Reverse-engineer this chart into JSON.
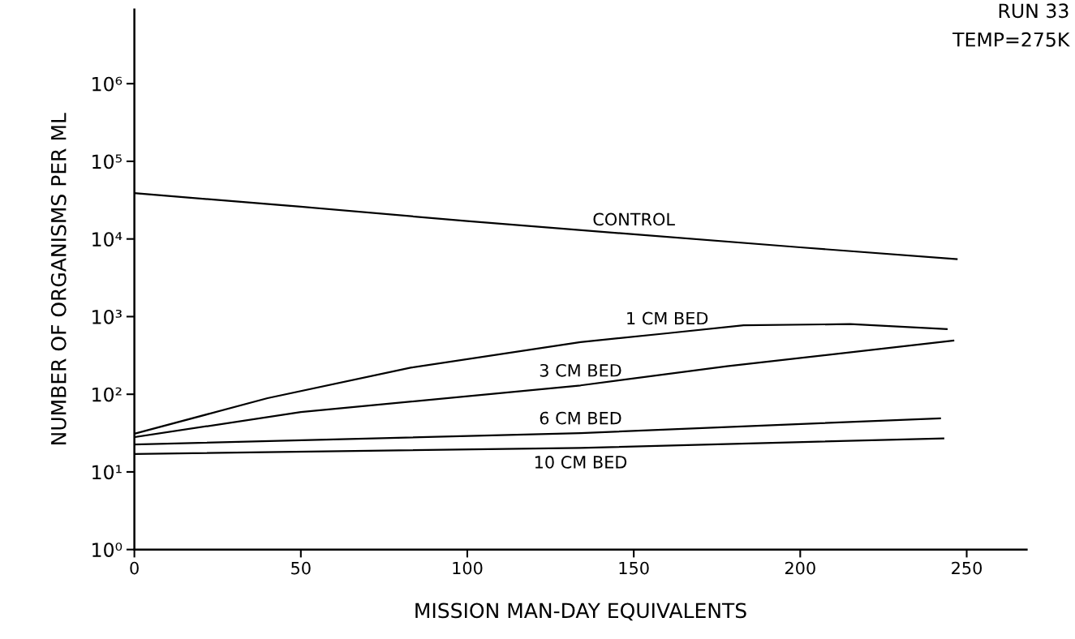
{
  "chart_data": {
    "type": "line",
    "xlabel": "MISSION MAN-DAY EQUIVALENTS",
    "ylabel": "NUMBER OF ORGANISMS PER ML",
    "annotations": [
      "RUN 33",
      "TEMP=275K"
    ],
    "log": "y",
    "xlim": [
      0,
      268
    ],
    "xticks": [
      0,
      50,
      100,
      150,
      200,
      250
    ],
    "ylim": [
      1,
      9000000
    ],
    "yticks": [
      {
        "value": 1,
        "label": "10⁰"
      },
      {
        "value": 10,
        "label": "10¹"
      },
      {
        "value": 100,
        "label": "10²"
      },
      {
        "value": 1000,
        "label": "10³"
      },
      {
        "value": 10000,
        "label": "10⁴"
      },
      {
        "value": 100000,
        "label": "10⁵"
      },
      {
        "value": 1000000,
        "label": "10⁶"
      }
    ],
    "grid": false,
    "legend": false,
    "marker": "none",
    "line_style": "solid",
    "series": [
      {
        "name": "CONTROL",
        "color": "#000000",
        "x": [
          0,
          50,
          100,
          150,
          200,
          247
        ],
        "values": [
          39000,
          26000,
          17000,
          11500,
          7800,
          5500
        ]
      },
      {
        "name": "1 CM BED",
        "color": "#000000",
        "x": [
          0,
          40,
          83,
          134,
          160,
          183,
          215,
          244
        ],
        "values": [
          31,
          89,
          220,
          470,
          610,
          775,
          800,
          690
        ]
      },
      {
        "name": "3 CM BED",
        "color": "#000000",
        "x": [
          0,
          50,
          134,
          178,
          246
        ],
        "values": [
          28,
          59,
          130,
          230,
          490
        ]
      },
      {
        "name": "6 CM BED",
        "color": "#000000",
        "x": [
          0,
          134,
          242
        ],
        "values": [
          22.5,
          31.6,
          49
        ]
      },
      {
        "name": "10 CM BED",
        "color": "#000000",
        "x": [
          0,
          134,
          243
        ],
        "values": [
          17,
          20.4,
          27
        ]
      }
    ]
  }
}
